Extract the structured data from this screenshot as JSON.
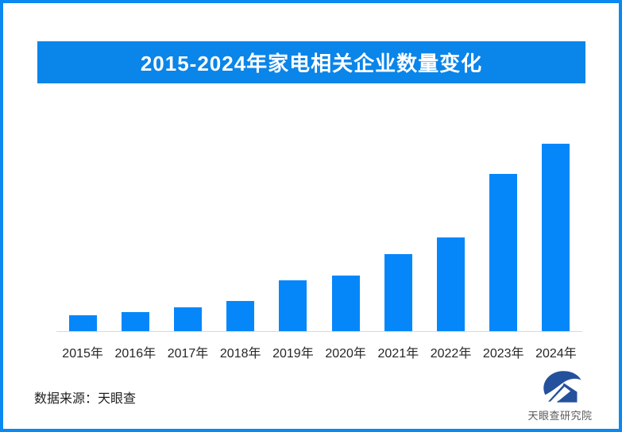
{
  "page": {
    "background": "#ffffff",
    "border_color": "#0b89f1"
  },
  "header": {
    "title": "2015-2024年家电相关企业数量变化",
    "banner_bg": "#0a85e9",
    "title_color": "#ffffff"
  },
  "chart_data": {
    "type": "bar",
    "title": "2015-2024年家电相关企业数量变化",
    "categories": [
      "2015年",
      "2016年",
      "2017年",
      "2018年",
      "2019年",
      "2020年",
      "2021年",
      "2022年",
      "2023年",
      "2024年"
    ],
    "values": [
      8.5,
      10.2,
      12.7,
      16.1,
      27.1,
      29.7,
      41.1,
      50.0,
      83.9,
      100.0
    ],
    "values_note": "relative heights, max bar (2024) = 100; no y-axis or data labels shown in image",
    "xlabel": "",
    "ylabel": "",
    "ylim": [
      0,
      100
    ],
    "grid": false,
    "legend": false,
    "bar_color": "#0587fa",
    "axis_line_color": "#d9d9d9"
  },
  "footer": {
    "source_label": "数据来源：天眼查",
    "brand_name": "天眼查研究院",
    "logo_color": "#24519c"
  }
}
